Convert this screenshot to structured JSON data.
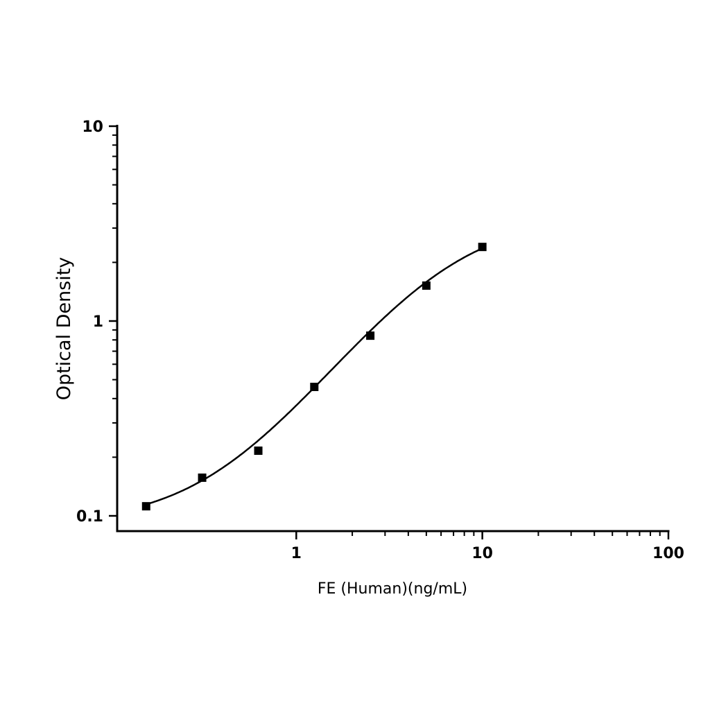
{
  "chart_data": {
    "type": "scatter",
    "title": "",
    "xlabel": "FE (Human)(ng/mL)",
    "ylabel": "Optical Density",
    "x_scale": "log",
    "y_scale": "log",
    "xlim": [
      0.109,
      100
    ],
    "ylim": [
      0.0835,
      10
    ],
    "x_ticks": [
      {
        "value": 1,
        "label": "1"
      },
      {
        "value": 10,
        "label": "10"
      },
      {
        "value": 100,
        "label": "100"
      }
    ],
    "y_ticks": [
      {
        "value": 0.1,
        "label": "0.1"
      },
      {
        "value": 1,
        "label": "1"
      },
      {
        "value": 10,
        "label": "10"
      }
    ],
    "grid": false,
    "legend": "none",
    "marker": "square",
    "color": "#000000",
    "fit_curve": "4-parameter logistic",
    "points": [
      {
        "x": 0.156,
        "y": 0.112
      },
      {
        "x": 0.312,
        "y": 0.157
      },
      {
        "x": 0.625,
        "y": 0.216
      },
      {
        "x": 1.25,
        "y": 0.459
      },
      {
        "x": 2.5,
        "y": 0.841
      },
      {
        "x": 5,
        "y": 1.52
      },
      {
        "x": 10,
        "y": 2.4
      }
    ]
  }
}
